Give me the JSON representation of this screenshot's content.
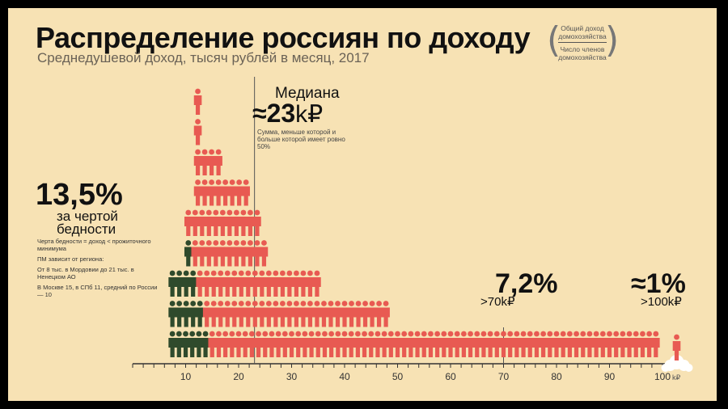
{
  "title": "Распределение россиян по доходу",
  "subtitle": "Среднедушевой доход, тысяч рублей в месяц, 2017",
  "formula": {
    "numerator": "Общий доход домохозяйства",
    "denominator": "Число членов домохозяйства"
  },
  "median": {
    "label": "Медиана",
    "value": "≈23",
    "unit": "k₽",
    "note": "Сумма, меньше которой и больше которой имеет ровно 50%"
  },
  "poverty": {
    "percent": "13,5%",
    "label": "за чертой бедности",
    "notes": [
      "Черта бедности = доход < прожиточного минимума",
      "ПМ зависит от региона:",
      "От 8 тыс. в Мордовии до 21 тыс. в Ненецком АО",
      "В Москве 15, в СПб 11, средний по России — 10"
    ]
  },
  "over70": {
    "percent": "7,2%",
    "label": ">70k₽"
  },
  "over100": {
    "percent": "≈1%",
    "label": ">100k₽"
  },
  "colors": {
    "above_poverty": "#e85a52",
    "below_poverty": "#2f4a2c",
    "background": "#f7e2b4"
  },
  "icons": {
    "person": "person-icon",
    "cloud": "cloud-icon"
  },
  "chart_data": {
    "type": "bar",
    "xlabel": "",
    "ylabel": "",
    "x_unit": "k₽",
    "xlim": [
      0,
      100
    ],
    "x_ticks": [
      10,
      20,
      30,
      40,
      50,
      60,
      70,
      80,
      90,
      100
    ],
    "x_tick_labels": [
      "10",
      "20",
      "30",
      "40",
      "50",
      "60",
      "70",
      "80",
      "90",
      "100"
    ],
    "median": 23,
    "markers": [
      23,
      70
    ],
    "columns": [
      {
        "x": 7.5,
        "total": 3,
        "dark": 3
      },
      {
        "x": 8.8,
        "total": 3,
        "dark": 3
      },
      {
        "x": 10.2,
        "total": 3,
        "dark": 3
      },
      {
        "x": 11.5,
        "total": 3,
        "dark": 3
      },
      {
        "x": 12.8,
        "total": 3,
        "dark": 3
      },
      {
        "x": 14,
        "total": 3,
        "dark": 2
      },
      {
        "x": 15.3,
        "total": 5,
        "dark": 0
      },
      {
        "x": 16.5,
        "total": 5,
        "dark": 0
      },
      {
        "x": 17.8,
        "total": 5,
        "dark": 0
      },
      {
        "x": 19,
        "total": 4,
        "dark": 0
      },
      {
        "x": 20.3,
        "total": 3,
        "dark": 0
      },
      {
        "x": 21.5,
        "total": 2,
        "dark": 0
      }
    ],
    "rows": [
      {
        "y": 1,
        "x_start": 7.5,
        "x_end": 99.5,
        "dark_x_max": 14.8,
        "spacing": 1.25
      },
      {
        "y": 2,
        "x_start": 7.5,
        "x_end": 48,
        "dark_x_max": 13.5,
        "spacing": 1.3
      },
      {
        "y": 3,
        "x_start": 7.5,
        "x_end": 36,
        "dark_x_max": 12,
        "spacing": 1.3
      },
      {
        "y": 4,
        "x_start": 10.5,
        "x_end": 26,
        "dark_x_max": 10.8,
        "spacing": 1.3
      },
      {
        "y": 5,
        "x_start": 10.5,
        "x_end": 23.5,
        "dark_x_max": 0,
        "spacing": 1.3
      },
      {
        "y": 6,
        "x_start": 12.3,
        "x_end": 22,
        "dark_x_max": 0,
        "spacing": 1.3
      },
      {
        "y": 7,
        "x_start": 12.3,
        "x_end": 16.5,
        "dark_x_max": 0,
        "spacing": 1.3
      },
      {
        "y": 8,
        "x_start": 12.3,
        "x_end": 13.5,
        "dark_x_max": 0,
        "spacing": 1.3
      },
      {
        "y": 9,
        "x_start": 12.3,
        "x_end": 13.5,
        "dark_x_max": 0,
        "spacing": 1.3
      }
    ],
    "tail_points": [
      {
        "x": 110,
        "note": ">100k₽"
      }
    ]
  }
}
